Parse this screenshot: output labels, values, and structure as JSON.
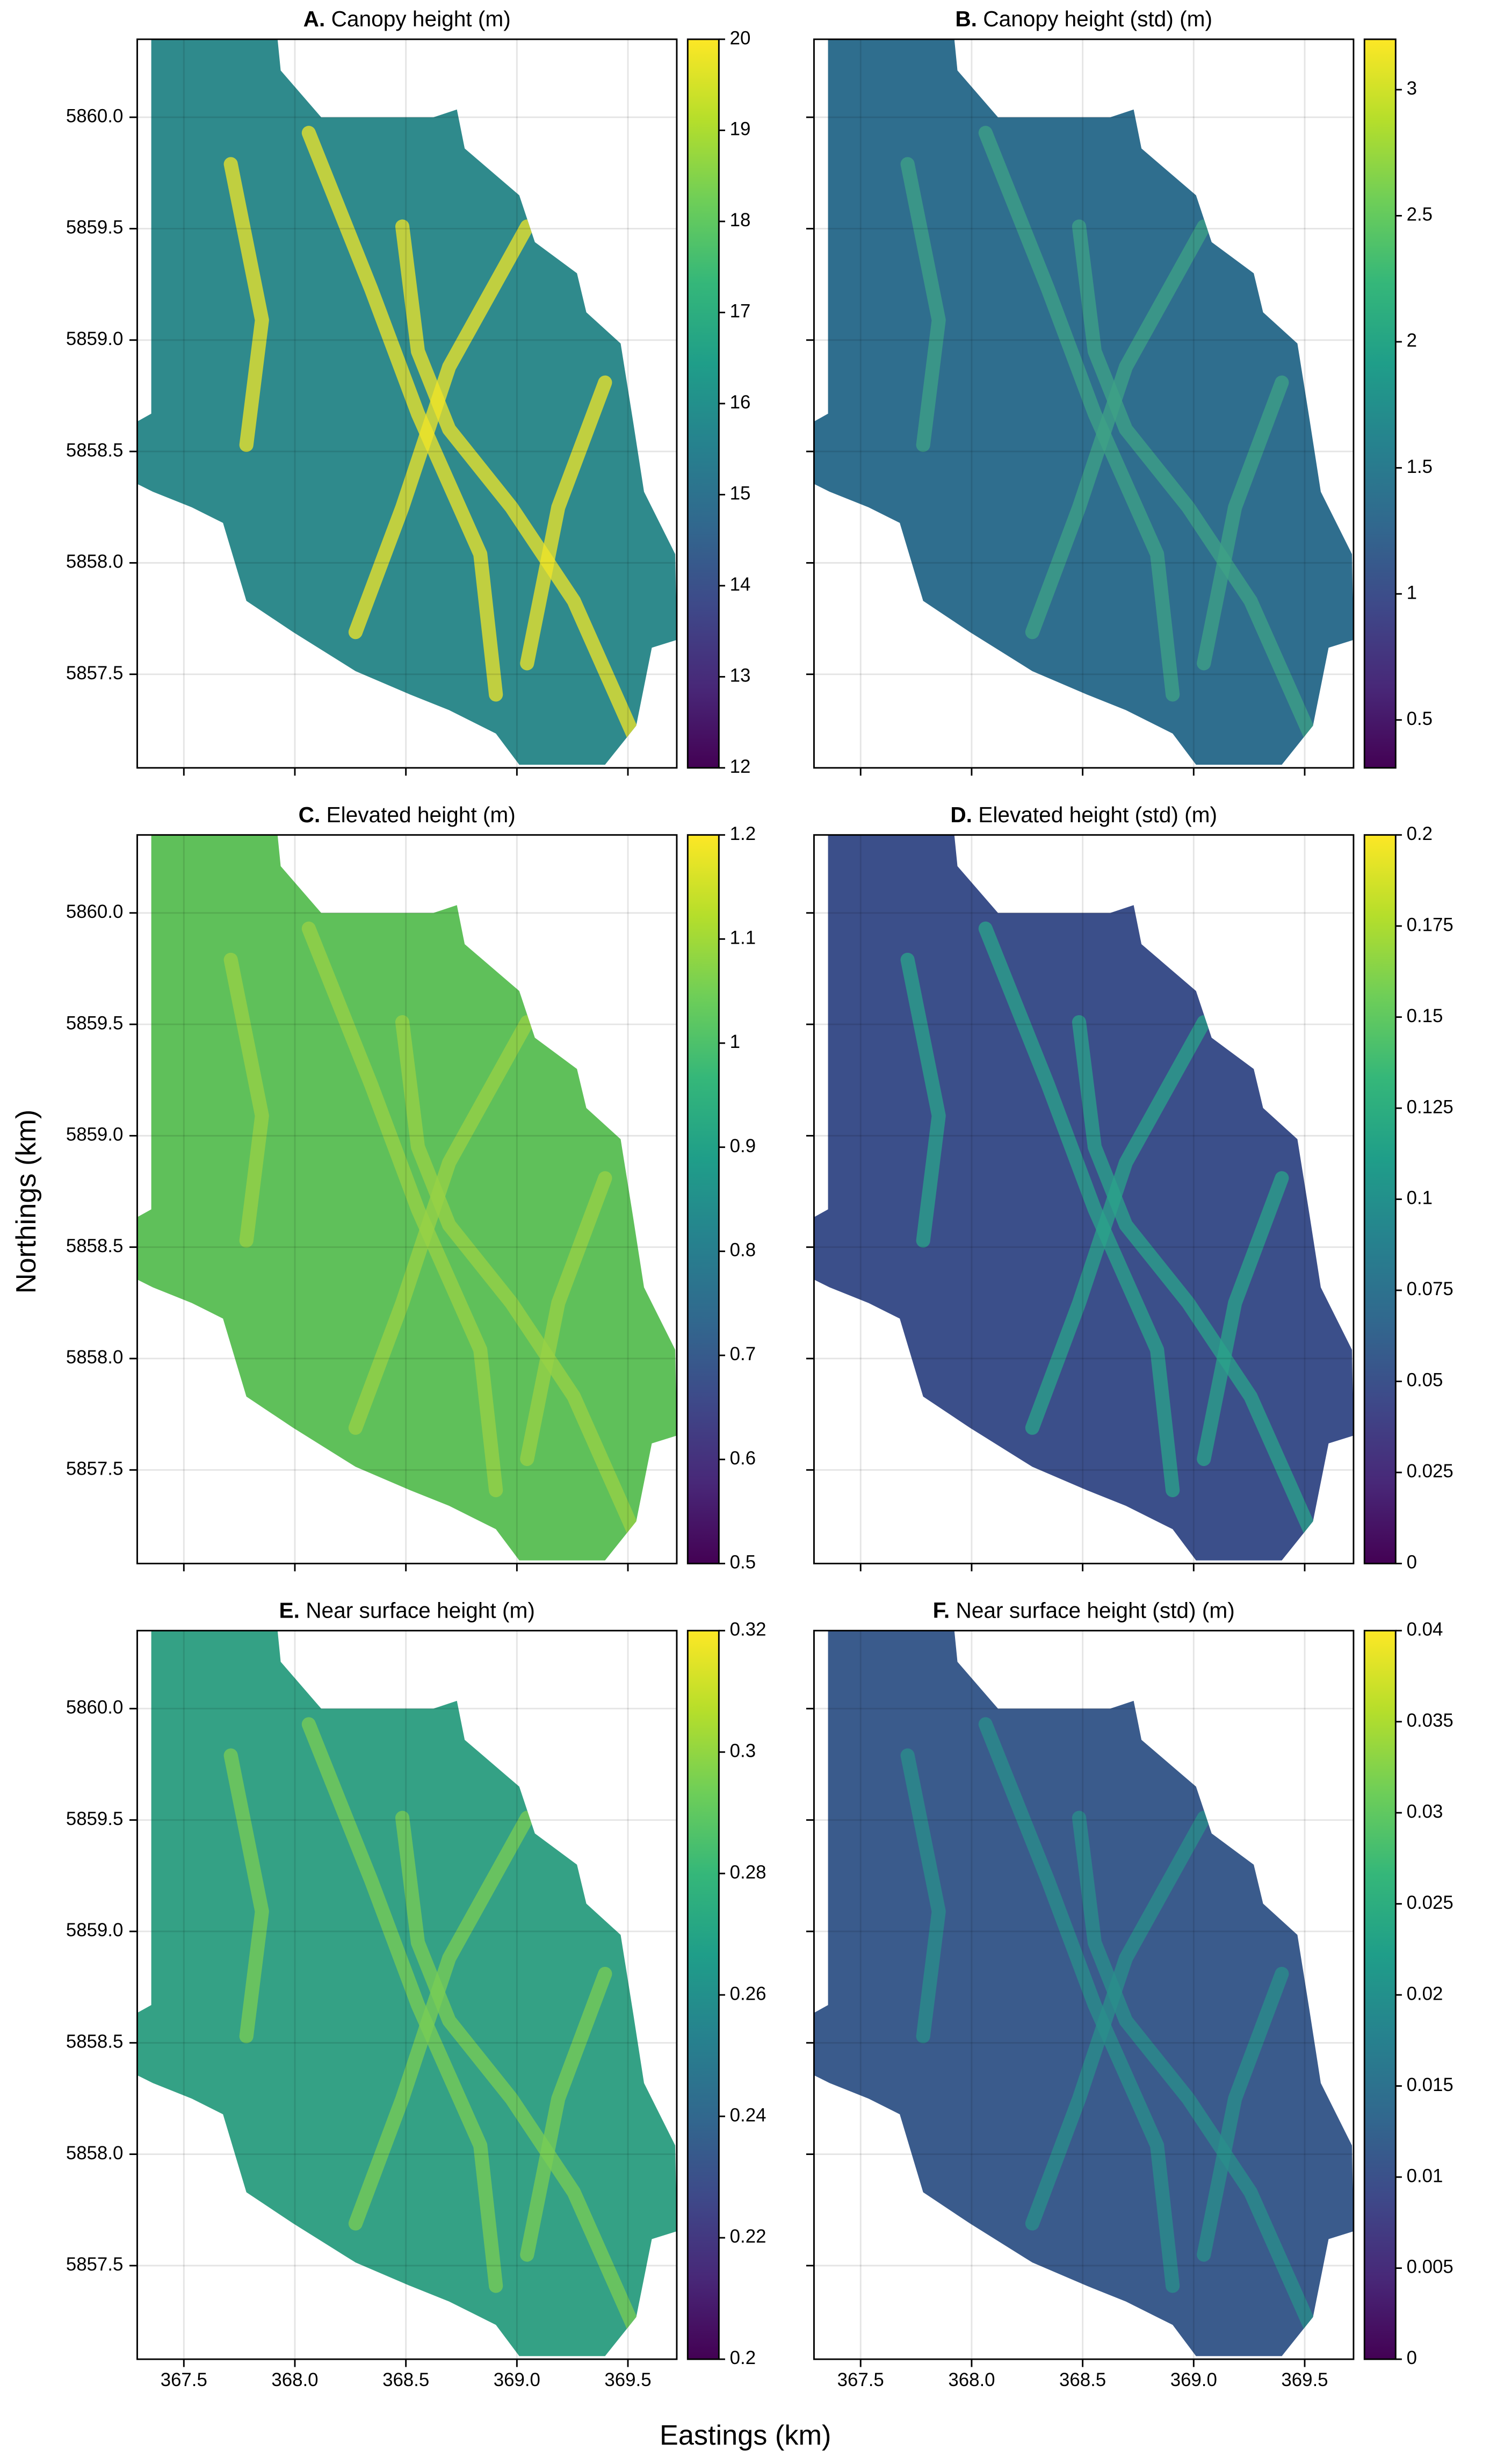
{
  "figure": {
    "xlabel": "Eastings (km)",
    "ylabel": "Northings (km)"
  },
  "chart_data": [
    {
      "type": "heatmap",
      "panel": "A.",
      "title": "Canopy height (m)",
      "colormap": "viridis",
      "grid": true,
      "xlim": [
        367.29,
        369.72
      ],
      "ylim": [
        5857.08,
        5860.35
      ],
      "xticklabels": false,
      "yticklabels": true,
      "xticks": [
        367.5,
        {
          "value": 368.0,
          "label": "368.0"
        },
        368.5,
        {
          "value": 369.0,
          "label": "369.0"
        },
        369.5
      ],
      "yticks": [
        5857.5,
        {
          "value": 5858.0,
          "label": "5858.0"
        },
        5858.5,
        {
          "value": 5859.0,
          "label": "5859.0"
        },
        5859.5,
        {
          "value": 5860.0,
          "label": "5860.0"
        }
      ],
      "clim": [
        12,
        20
      ],
      "cticks": [
        12,
        13,
        14,
        15,
        16,
        17,
        18,
        19,
        20
      ]
    },
    {
      "type": "heatmap",
      "panel": "B.",
      "title": "Canopy height (std) (m)",
      "colormap": "viridis",
      "grid": true,
      "xlim": [
        367.29,
        369.72
      ],
      "ylim": [
        5857.08,
        5860.35
      ],
      "xticklabels": false,
      "yticklabels": false,
      "xticks": [
        367.5,
        {
          "value": 368.0,
          "label": "368.0"
        },
        368.5,
        {
          "value": 369.0,
          "label": "369.0"
        },
        369.5
      ],
      "yticks": [
        5857.5,
        {
          "value": 5858.0,
          "label": "5858.0"
        },
        5858.5,
        {
          "value": 5859.0,
          "label": "5859.0"
        },
        5859.5,
        {
          "value": 5860.0,
          "label": "5860.0"
        }
      ],
      "clim": [
        0.31,
        3.2
      ],
      "cticks": [
        0.5,
        1,
        1.5,
        2,
        2.5,
        3
      ]
    },
    {
      "type": "heatmap",
      "panel": "C.",
      "title": "Elevated height (m)",
      "colormap": "viridis",
      "grid": true,
      "xlim": [
        367.29,
        369.72
      ],
      "ylim": [
        5857.08,
        5860.35
      ],
      "xticklabels": false,
      "yticklabels": true,
      "xticks": [
        367.5,
        {
          "value": 368.0,
          "label": "368.0"
        },
        368.5,
        {
          "value": 369.0,
          "label": "369.0"
        },
        369.5
      ],
      "yticks": [
        5857.5,
        {
          "value": 5858.0,
          "label": "5858.0"
        },
        5858.5,
        {
          "value": 5859.0,
          "label": "5859.0"
        },
        5859.5,
        {
          "value": 5860.0,
          "label": "5860.0"
        }
      ],
      "clim": [
        0.5,
        1.2
      ],
      "cticks": [
        0.5,
        0.6,
        0.7,
        0.8,
        0.9,
        1,
        1.1,
        1.2
      ]
    },
    {
      "type": "heatmap",
      "panel": "D.",
      "title": "Elevated height (std) (m)",
      "colormap": "viridis",
      "grid": true,
      "xlim": [
        367.29,
        369.72
      ],
      "ylim": [
        5857.08,
        5860.35
      ],
      "xticklabels": false,
      "yticklabels": false,
      "xticks": [
        367.5,
        {
          "value": 368.0,
          "label": "368.0"
        },
        368.5,
        {
          "value": 369.0,
          "label": "369.0"
        },
        369.5
      ],
      "yticks": [
        5857.5,
        {
          "value": 5858.0,
          "label": "5858.0"
        },
        5858.5,
        {
          "value": 5859.0,
          "label": "5859.0"
        },
        5859.5,
        {
          "value": 5860.0,
          "label": "5860.0"
        }
      ],
      "clim": [
        0,
        0.2
      ],
      "cticks": [
        0,
        0.025,
        0.05,
        0.075,
        0.1,
        0.125,
        0.15,
        0.175,
        0.2
      ]
    },
    {
      "type": "heatmap",
      "panel": "E.",
      "title": "Near surface height (m)",
      "colormap": "viridis",
      "grid": true,
      "xlim": [
        367.29,
        369.72
      ],
      "ylim": [
        5857.08,
        5860.35
      ],
      "xticklabels": true,
      "yticklabels": true,
      "xticks": [
        367.5,
        {
          "value": 368.0,
          "label": "368.0"
        },
        368.5,
        {
          "value": 369.0,
          "label": "369.0"
        },
        369.5
      ],
      "yticks": [
        5857.5,
        {
          "value": 5858.0,
          "label": "5858.0"
        },
        5858.5,
        {
          "value": 5859.0,
          "label": "5859.0"
        },
        5859.5,
        {
          "value": 5860.0,
          "label": "5860.0"
        }
      ],
      "clim": [
        0.2,
        0.32
      ],
      "cticks": [
        0.2,
        0.22,
        0.24,
        0.26,
        0.28,
        0.3,
        0.32
      ]
    },
    {
      "type": "heatmap",
      "panel": "F.",
      "title": "Near surface height (std) (m)",
      "colormap": "viridis",
      "grid": true,
      "xlim": [
        367.29,
        369.72
      ],
      "ylim": [
        5857.08,
        5860.35
      ],
      "xticklabels": true,
      "yticklabels": false,
      "xticks": [
        367.5,
        {
          "value": 368.0,
          "label": "368.0"
        },
        368.5,
        {
          "value": 369.0,
          "label": "369.0"
        },
        369.5
      ],
      "yticks": [
        5857.5,
        {
          "value": 5858.0,
          "label": "5858.0"
        },
        5858.5,
        {
          "value": 5859.0,
          "label": "5859.0"
        },
        5859.5,
        {
          "value": 5860.0,
          "label": "5860.0"
        }
      ],
      "clim": [
        0,
        0.04
      ],
      "cticks": [
        0,
        0.005,
        0.01,
        0.015,
        0.02,
        0.025,
        0.03,
        0.035,
        0.04
      ]
    }
  ]
}
